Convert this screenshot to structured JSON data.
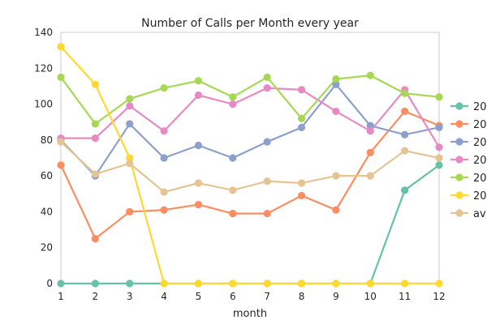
{
  "chart_data": {
    "type": "line",
    "title": "Number of Calls per Month every year",
    "xlabel": "month",
    "ylabel": "",
    "x": [
      1,
      2,
      3,
      4,
      5,
      6,
      7,
      8,
      9,
      10,
      11,
      12
    ],
    "xlim": [
      1,
      12
    ],
    "ylim": [
      0,
      140
    ],
    "xticks": [
      "1",
      "2",
      "3",
      "4",
      "5",
      "6",
      "7",
      "8",
      "9",
      "10",
      "11",
      "12"
    ],
    "yticks": [
      "0",
      "20",
      "40",
      "60",
      "80",
      "100",
      "120",
      "140"
    ],
    "grid": false,
    "legend_position": "right (clipped)",
    "series": [
      {
        "name": "20",
        "color": "#66c2a5",
        "values": [
          0,
          0,
          0,
          0,
          0,
          0,
          0,
          0,
          0,
          0,
          52,
          66
        ]
      },
      {
        "name": "20",
        "color": "#fc8d62",
        "values": [
          66,
          25,
          40,
          41,
          44,
          39,
          39,
          49,
          41,
          73,
          96,
          88
        ]
      },
      {
        "name": "20",
        "color": "#8da0cb",
        "values": [
          80,
          60,
          89,
          70,
          77,
          70,
          79,
          87,
          111,
          88,
          83,
          87
        ]
      },
      {
        "name": "20",
        "color": "#e78ac3",
        "values": [
          81,
          81,
          99,
          85,
          105,
          100,
          109,
          108,
          96,
          85,
          108,
          76
        ]
      },
      {
        "name": "20",
        "color": "#a6d854",
        "values": [
          115,
          89,
          103,
          109,
          113,
          104,
          115,
          92,
          114,
          116,
          106,
          104
        ]
      },
      {
        "name": "20",
        "color": "#ffd92f",
        "values": [
          132,
          111,
          70,
          0,
          0,
          0,
          0,
          0,
          0,
          0,
          0,
          0
        ]
      },
      {
        "name": "av",
        "color": "#e5c494",
        "values": [
          79,
          61,
          67,
          51,
          56,
          52,
          57,
          56,
          60,
          60,
          74,
          70
        ]
      }
    ]
  }
}
